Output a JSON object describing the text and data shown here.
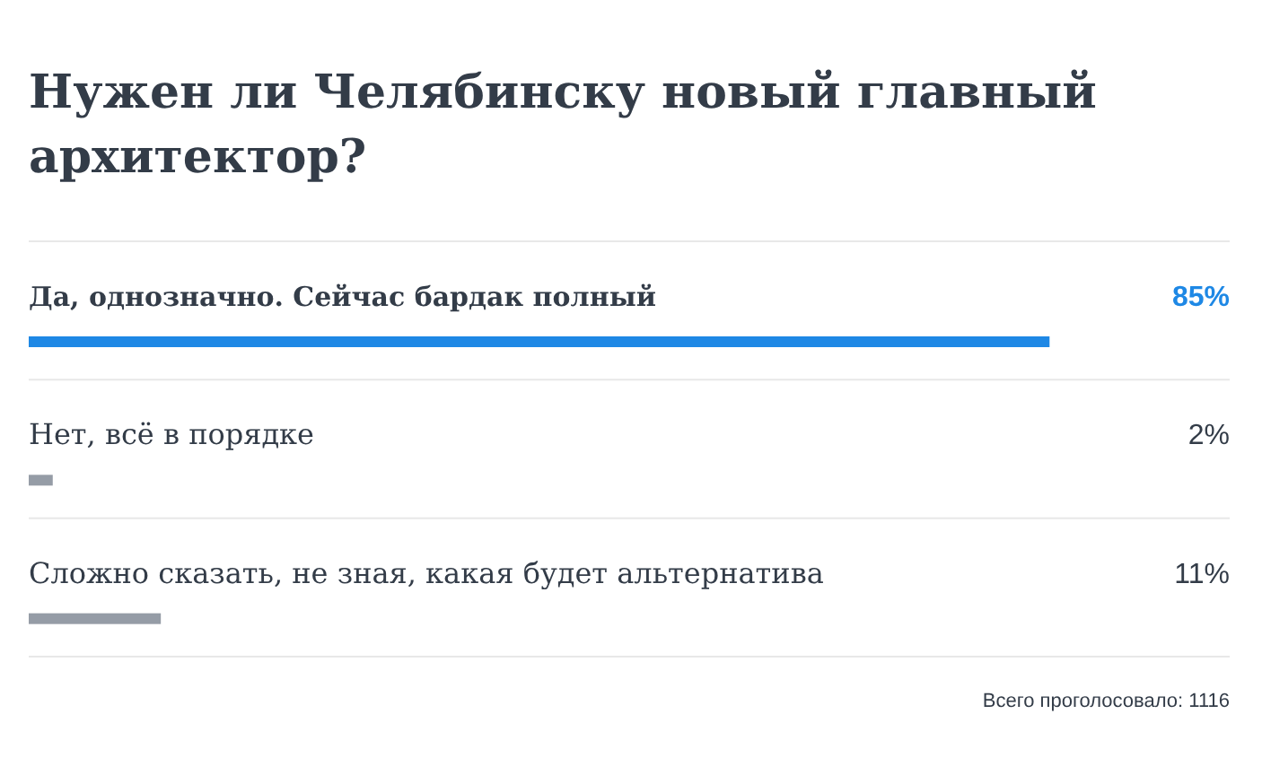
{
  "chart_data": {
    "type": "bar",
    "orientation": "horizontal",
    "title": "Нужен ли Челябинску новый главный архитектор?",
    "categories": [
      "Да, однозначно. Сейчас бардак полный",
      "Нет, всё в порядке",
      "Сложно сказать, не зная, какая будет альтернатива"
    ],
    "values": [
      85,
      2,
      11
    ],
    "colors": [
      "#1e88e5",
      "#959ca6",
      "#959ca6"
    ],
    "value_labels": [
      "85%",
      "2%",
      "11%"
    ],
    "xlim": [
      0,
      100
    ],
    "annotations": [
      "Всего проголосовало: 1116"
    ]
  }
}
